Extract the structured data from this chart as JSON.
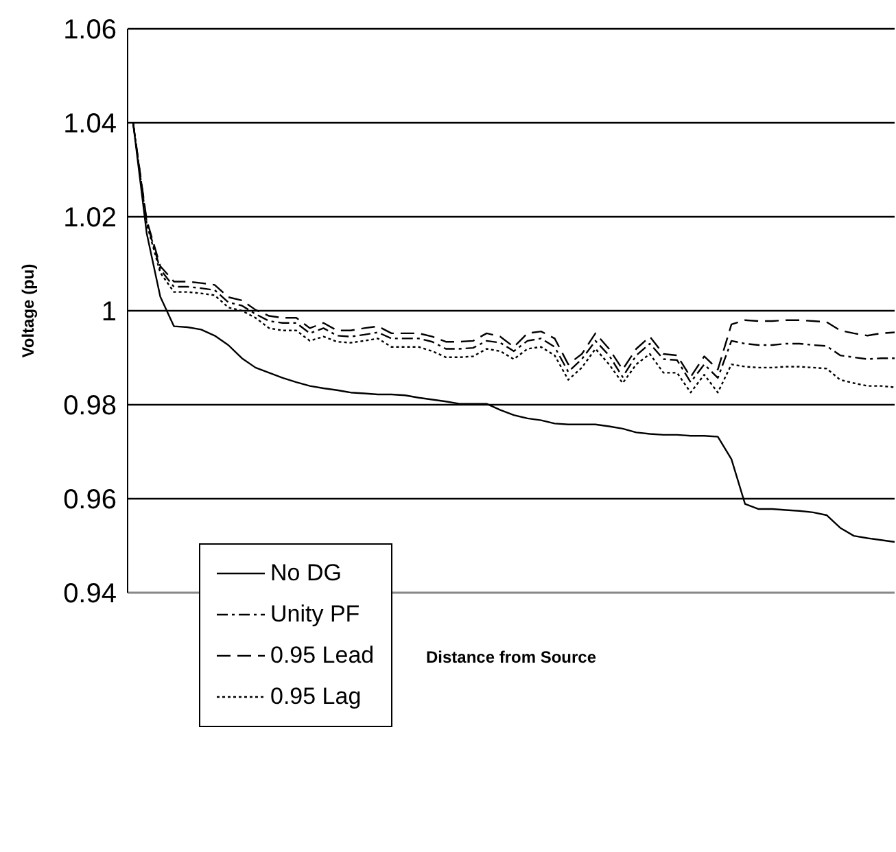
{
  "chart_data": {
    "type": "line",
    "xlabel": "Distance from Source",
    "ylabel": "Voltage (pu)",
    "categories": [
      null,
      null,
      null,
      null,
      null,
      null,
      null,
      null,
      null,
      null,
      null,
      null,
      null,
      null,
      null,
      null,
      null,
      null,
      null,
      null,
      null,
      null,
      null,
      null,
      null,
      null,
      null,
      null,
      null,
      null,
      null,
      null,
      null,
      null,
      null,
      null,
      null,
      null,
      null,
      null,
      null,
      null,
      null,
      null,
      null,
      null,
      null,
      null,
      null,
      null,
      null,
      null,
      null,
      null,
      null,
      null,
      null
    ],
    "series": [
      {
        "name": "No DG",
        "color": "#000000",
        "line_style": "solid",
        "values": [
          1.04,
          1.0165,
          1.003,
          0.9967,
          0.9965,
          0.996,
          0.9947,
          0.9927,
          0.9899,
          0.9879,
          0.9868,
          0.9857,
          0.9848,
          0.984,
          0.9835,
          0.9831,
          0.9826,
          0.9824,
          0.9822,
          0.9822,
          0.982,
          0.9815,
          0.9811,
          0.9807,
          0.9802,
          0.9802,
          0.9802,
          0.9789,
          0.9778,
          0.9771,
          0.9767,
          0.976,
          0.9758,
          0.9758,
          0.9758,
          0.9754,
          0.9749,
          0.9741,
          0.9738,
          0.9736,
          0.9736,
          0.9734,
          0.9734,
          0.9732,
          0.9684,
          0.9589,
          0.9578,
          0.9578,
          0.9576,
          0.9574,
          0.9571,
          0.9565,
          0.9538,
          0.9521,
          0.9516,
          0.9512,
          0.9508
        ]
      },
      {
        "name": "Unity PF",
        "color": "#000000",
        "line_style": "dashdot",
        "values": [
          1.04,
          1.0189,
          1.0088,
          1.0051,
          1.0051,
          1.0048,
          1.0044,
          1.0018,
          1.0011,
          0.9993,
          0.9978,
          0.9974,
          0.9974,
          0.9952,
          0.9963,
          0.9947,
          0.9945,
          0.9949,
          0.9954,
          0.9941,
          0.9941,
          0.9941,
          0.9934,
          0.9919,
          0.9919,
          0.9921,
          0.9936,
          0.9932,
          0.9914,
          0.9936,
          0.9941,
          0.9923,
          0.987,
          0.9897,
          0.9936,
          0.9905,
          0.9859,
          0.9905,
          0.993,
          0.9897,
          0.9895,
          0.9848,
          0.9886,
          0.9857,
          0.9936,
          0.993,
          0.9927,
          0.9927,
          0.993,
          0.993,
          0.9927,
          0.9925,
          0.9905,
          0.9901,
          0.9897,
          0.9899,
          0.9899
        ]
      },
      {
        "name": "0.95 Lead",
        "color": "#000000",
        "line_style": "dashed",
        "values": [
          1.04,
          1.0193,
          1.0095,
          1.0062,
          1.0062,
          1.0059,
          1.0055,
          1.0029,
          1.0022,
          1.0002,
          0.9989,
          0.9985,
          0.9985,
          0.9963,
          0.9974,
          0.9958,
          0.9958,
          0.9963,
          0.9967,
          0.9952,
          0.9952,
          0.9952,
          0.9945,
          0.9934,
          0.9934,
          0.9936,
          0.9952,
          0.9945,
          0.9923,
          0.9952,
          0.9956,
          0.9941,
          0.9886,
          0.9908,
          0.9952,
          0.9919,
          0.9875,
          0.9919,
          0.9945,
          0.9908,
          0.9905,
          0.9859,
          0.9903,
          0.9875,
          0.9971,
          0.998,
          0.9978,
          0.9978,
          0.998,
          0.998,
          0.9978,
          0.9976,
          0.9958,
          0.9952,
          0.9947,
          0.9952,
          0.9954
        ]
      },
      {
        "name": "0.95 Lag",
        "color": "#000000",
        "line_style": "dotted",
        "values": [
          1.04,
          1.0185,
          1.0081,
          1.004,
          1.004,
          1.0037,
          1.0033,
          1.0007,
          1.0,
          0.9985,
          0.9963,
          0.9958,
          0.9958,
          0.9936,
          0.9945,
          0.9934,
          0.9932,
          0.9936,
          0.9941,
          0.9923,
          0.9923,
          0.9923,
          0.9914,
          0.9901,
          0.9901,
          0.9903,
          0.9919,
          0.9914,
          0.9897,
          0.9919,
          0.9923,
          0.9905,
          0.9853,
          0.9879,
          0.9919,
          0.9886,
          0.9846,
          0.9886,
          0.9908,
          0.9868,
          0.9868,
          0.9826,
          0.9864,
          0.9826,
          0.9886,
          0.9881,
          0.9879,
          0.9879,
          0.9881,
          0.9881,
          0.9879,
          0.9877,
          0.9853,
          0.9846,
          0.984,
          0.984,
          0.9837
        ]
      }
    ],
    "ylim": [
      0.94,
      1.06
    ],
    "yticks": [
      0.94,
      0.96,
      0.98,
      1,
      1.02,
      1.04,
      1.06
    ],
    "grid": "y",
    "legend": "bottom left",
    "marker": "none"
  }
}
